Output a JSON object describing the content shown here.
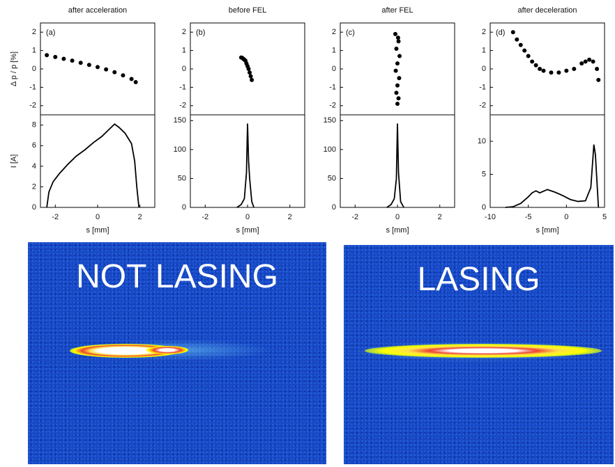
{
  "chart_data": [
    {
      "type": "scatter",
      "title": "after acceleration",
      "ylabel": "Δ p / p [%]",
      "annotation": "(a)",
      "x": [
        -2.4,
        -2,
        -1.6,
        -1.2,
        -0.8,
        -0.4,
        0,
        0.4,
        0.8,
        1.2,
        1.6,
        1.8
      ],
      "values": [
        0.75,
        0.65,
        0.55,
        0.45,
        0.33,
        0.22,
        0.1,
        -0.03,
        -0.18,
        -0.35,
        -0.55,
        -0.72
      ],
      "color": "#000000",
      "xlim": [
        -2.7,
        2.7
      ],
      "ylim": [
        -2.5,
        2.5
      ],
      "yticks": [
        -2,
        -1,
        0,
        1,
        2
      ]
    },
    {
      "type": "scatter",
      "title": "before FEL",
      "annotation": "(b)",
      "x": [
        -0.3,
        -0.25,
        -0.2,
        -0.15,
        -0.1,
        -0.05,
        0,
        0.05,
        0.1,
        0.15,
        0.2
      ],
      "values": [
        0.62,
        0.6,
        0.55,
        0.5,
        0.45,
        0.3,
        0.15,
        0,
        -0.2,
        -0.4,
        -0.6
      ],
      "color": "#000000",
      "xlim": [
        -2.7,
        2.7
      ],
      "ylim": [
        -2.5,
        2.5
      ],
      "yticks": [
        -2,
        -1,
        0,
        1,
        2
      ]
    },
    {
      "type": "scatter",
      "title": "after FEL",
      "annotation": "(c)",
      "x": [
        -0.1,
        0.05,
        -0.05,
        0.1,
        0,
        -0.08,
        0.08,
        0,
        -0.05,
        0.05,
        0,
        0.03
      ],
      "values": [
        1.9,
        1.5,
        1.1,
        0.7,
        0.3,
        -0.1,
        -0.5,
        -0.9,
        -1.3,
        -1.6,
        -1.9,
        1.7
      ],
      "color": "#000000",
      "xlim": [
        -2.7,
        2.7
      ],
      "ylim": [
        -2.5,
        2.5
      ],
      "yticks": [
        -2,
        -1,
        0,
        1,
        2
      ]
    },
    {
      "type": "scatter",
      "title": "after deceleration",
      "annotation": "(d)",
      "x": [
        -7,
        -6.5,
        -6,
        -5.5,
        -5,
        -4.5,
        -4,
        -3.5,
        -3,
        -2,
        -1,
        0,
        1,
        2,
        2.5,
        3,
        3.5,
        4,
        4.2
      ],
      "values": [
        2.0,
        1.6,
        1.3,
        1.0,
        0.7,
        0.4,
        0.2,
        0.0,
        -0.1,
        -0.2,
        -0.2,
        -0.1,
        0.0,
        0.3,
        0.4,
        0.5,
        0.4,
        0,
        -0.6
      ],
      "color": "#000000",
      "xlim": [
        -10,
        5
      ],
      "ylim": [
        -2.5,
        2.5
      ],
      "yticks": [
        -2,
        -1,
        0,
        1,
        2
      ]
    },
    {
      "type": "line",
      "ylabel": "I [A]",
      "xlabel": "s [mm]",
      "x": [
        -2.4,
        -2.3,
        -2.1,
        -1.8,
        -1.4,
        -1,
        -0.6,
        -0.2,
        0.2,
        0.5,
        0.8,
        1,
        1.3,
        1.6,
        1.75,
        1.85,
        1.95
      ],
      "values": [
        0,
        1.5,
        2.5,
        3.3,
        4.2,
        5,
        5.6,
        6.3,
        6.9,
        7.5,
        8.1,
        7.8,
        7.2,
        6.2,
        4.5,
        2,
        0
      ],
      "color": "#000000",
      "xlim": [
        -2.7,
        2.7
      ],
      "xticks": [
        -2,
        0,
        2
      ],
      "ylim": [
        0,
        9
      ],
      "yticks": [
        0,
        2,
        4,
        6,
        8
      ]
    },
    {
      "type": "line",
      "xlabel": "s [mm]",
      "x": [
        -0.5,
        -0.3,
        -0.15,
        -0.05,
        0,
        0.05,
        0.1,
        0.2,
        0.3
      ],
      "values": [
        0,
        5,
        15,
        60,
        145,
        80,
        50,
        10,
        0
      ],
      "color": "#000000",
      "xlim": [
        -2.7,
        2.7
      ],
      "xticks": [
        -2,
        0,
        2
      ],
      "ylim": [
        0,
        160
      ],
      "yticks": [
        0,
        50,
        100,
        150
      ]
    },
    {
      "type": "line",
      "xlabel": "s [mm]",
      "x": [
        -0.5,
        -0.3,
        -0.15,
        -0.05,
        0,
        0.05,
        0.15,
        0.3
      ],
      "values": [
        0,
        5,
        15,
        50,
        145,
        60,
        10,
        0
      ],
      "color": "#000000",
      "xlim": [
        -2.7,
        2.7
      ],
      "xticks": [
        -2,
        0,
        2
      ],
      "ylim": [
        0,
        160
      ],
      "yticks": [
        0,
        50,
        100,
        150
      ]
    },
    {
      "type": "line",
      "xlabel": "s [mm]",
      "x": [
        -8,
        -7,
        -6,
        -5,
        -4.5,
        -4,
        -3.5,
        -2.5,
        -1.5,
        -0.5,
        0.5,
        1.5,
        2.5,
        3.2,
        3.6,
        3.8,
        4,
        4.2
      ],
      "values": [
        0,
        0.1,
        0.6,
        1.6,
        2.2,
        2.5,
        2.2,
        2.7,
        2.3,
        1.8,
        1.2,
        0.9,
        1.0,
        3,
        9.5,
        8,
        4,
        0
      ],
      "color": "#000000",
      "xlim": [
        -10,
        5
      ],
      "xticks": [
        -10,
        -5,
        0,
        5
      ],
      "ylim": [
        0,
        14
      ],
      "yticks": [
        0,
        5,
        10
      ]
    }
  ],
  "images": [
    {
      "label": "NOT LASING"
    },
    {
      "label": "LASING"
    }
  ]
}
